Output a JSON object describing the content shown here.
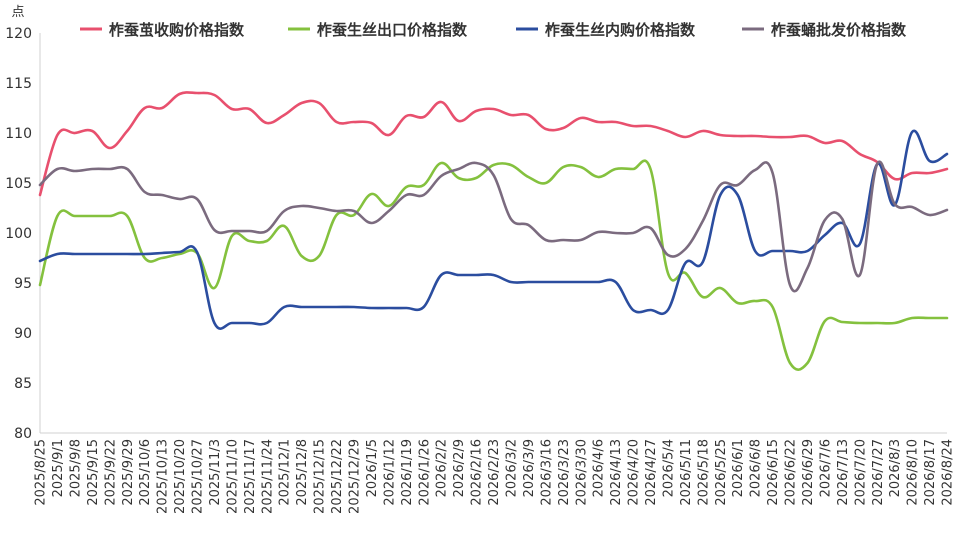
{
  "chart_data": {
    "type": "line",
    "ylabel": "点",
    "ylim": [
      80,
      120
    ],
    "yticks": [
      80,
      85,
      90,
      95,
      100,
      105,
      110,
      115,
      120
    ],
    "grid": false,
    "legend_position": "top",
    "x_labels": [
      "2025/8/25",
      "2025/9/1",
      "2025/9/8",
      "2025/9/15",
      "2025/9/22",
      "2025/9/29",
      "2025/10/6",
      "2025/10/13",
      "2025/10/20",
      "2025/10/27",
      "2025/11/3",
      "2025/11/10",
      "2025/11/17",
      "2025/11/24",
      "2025/12/1",
      "2025/12/8",
      "2025/12/15",
      "2025/12/22",
      "2025/12/29",
      "2026/1/5",
      "2026/1/12",
      "2026/1/19",
      "2026/1/26",
      "2026/2/2",
      "2026/2/9",
      "2026/2/16",
      "2026/2/23",
      "2026/3/2",
      "2026/3/9",
      "2026/3/16",
      "2026/3/23",
      "2026/3/30",
      "2026/4/6",
      "2026/4/13",
      "2026/4/20",
      "2026/4/27",
      "2026/5/4",
      "2026/5/11",
      "2026/5/18",
      "2026/5/25",
      "2026/6/1",
      "2026/6/8",
      "2026/6/15",
      "2026/6/22",
      "2026/6/29",
      "2026/7/6",
      "2026/7/13",
      "2026/7/20",
      "2026/7/27",
      "2026/8/3",
      "2026/8/10",
      "2026/8/17",
      "2026/8/24"
    ],
    "series": [
      {
        "name": "柞蚕茧收购价格指数",
        "color": "#e8506e",
        "values": [
          103.8,
          109.8,
          110.0,
          110.2,
          108.5,
          110.2,
          112.5,
          112.5,
          113.9,
          114.0,
          113.8,
          112.4,
          112.4,
          111.0,
          111.8,
          113.0,
          113.0,
          111.1,
          111.1,
          111.0,
          109.8,
          111.7,
          111.6,
          113.1,
          111.2,
          112.2,
          112.4,
          111.8,
          111.8,
          110.4,
          110.5,
          111.5,
          111.1,
          111.1,
          110.7,
          110.7,
          110.2,
          109.6,
          110.2,
          109.8,
          109.7,
          109.7,
          109.6,
          109.6,
          109.7,
          109.0,
          109.2,
          107.9,
          107.1,
          105.4,
          106.0,
          106.0,
          106.4
        ]
      },
      {
        "name": "柞蚕生丝出口价格指数",
        "color": "#84c13e",
        "values": [
          94.8,
          101.7,
          101.7,
          101.7,
          101.7,
          101.7,
          97.5,
          97.5,
          97.9,
          98.0,
          94.5,
          99.7,
          99.2,
          99.2,
          100.7,
          97.7,
          97.7,
          101.8,
          101.8,
          103.9,
          102.7,
          104.6,
          104.8,
          107.0,
          105.5,
          105.5,
          106.8,
          106.8,
          105.6,
          105.0,
          106.6,
          106.6,
          105.6,
          106.4,
          106.4,
          106.4,
          96.0,
          96.0,
          93.6,
          94.5,
          93.0,
          93.2,
          92.6,
          87.0,
          87.0,
          91.2,
          91.1,
          91.0,
          91.0,
          91.0,
          91.5,
          91.5,
          91.5
        ]
      },
      {
        "name": "柞蚕生丝内购价格指数",
        "color": "#2b4d9f",
        "values": [
          97.2,
          97.9,
          97.9,
          97.9,
          97.9,
          97.9,
          97.9,
          98.0,
          98.1,
          98.1,
          91.0,
          91.0,
          91.0,
          91.0,
          92.6,
          92.6,
          92.6,
          92.6,
          92.6,
          92.5,
          92.5,
          92.5,
          92.6,
          95.8,
          95.8,
          95.8,
          95.8,
          95.1,
          95.1,
          95.1,
          95.1,
          95.1,
          95.1,
          95.1,
          92.3,
          92.3,
          92.3,
          97.0,
          97.1,
          103.8,
          103.8,
          98.2,
          98.2,
          98.2,
          98.2,
          99.8,
          101.0,
          98.9,
          106.9,
          102.8,
          110.1,
          107.2,
          107.9
        ]
      },
      {
        "name": "柞蚕蛹批发价格指数",
        "color": "#7b6b7f",
        "values": [
          104.8,
          106.4,
          106.2,
          106.4,
          106.4,
          106.4,
          104.1,
          103.8,
          103.4,
          103.4,
          100.3,
          100.2,
          100.2,
          100.2,
          102.2,
          102.7,
          102.5,
          102.2,
          102.2,
          101.0,
          102.2,
          103.8,
          103.8,
          105.7,
          106.4,
          107.0,
          105.8,
          101.4,
          100.8,
          99.3,
          99.3,
          99.3,
          100.1,
          100.0,
          100.0,
          100.5,
          97.8,
          98.4,
          101.2,
          104.8,
          104.8,
          106.3,
          106.0,
          94.8,
          96.5,
          101.3,
          101.4,
          95.8,
          106.9,
          102.9,
          102.6,
          101.8,
          102.3
        ]
      }
    ]
  }
}
